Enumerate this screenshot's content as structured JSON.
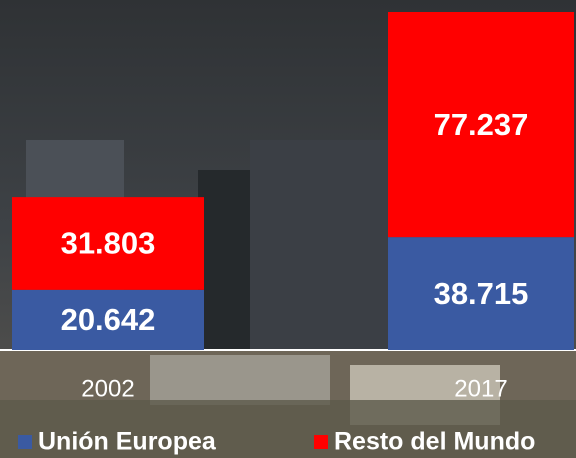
{
  "chart_data": {
    "type": "stacked-bar",
    "categories": [
      "2002",
      "2017"
    ],
    "series": [
      {
        "name": "Unión Europea",
        "color": "#3a5aa2",
        "values": [
          20642,
          38715
        ],
        "value_labels": [
          "20.642",
          "38.715"
        ]
      },
      {
        "name": "Resto del Mundo",
        "color": "#ff0000",
        "values": [
          31803,
          77237
        ],
        "value_labels": [
          "31.803",
          "77.237"
        ]
      }
    ],
    "legend": "bottom"
  }
}
